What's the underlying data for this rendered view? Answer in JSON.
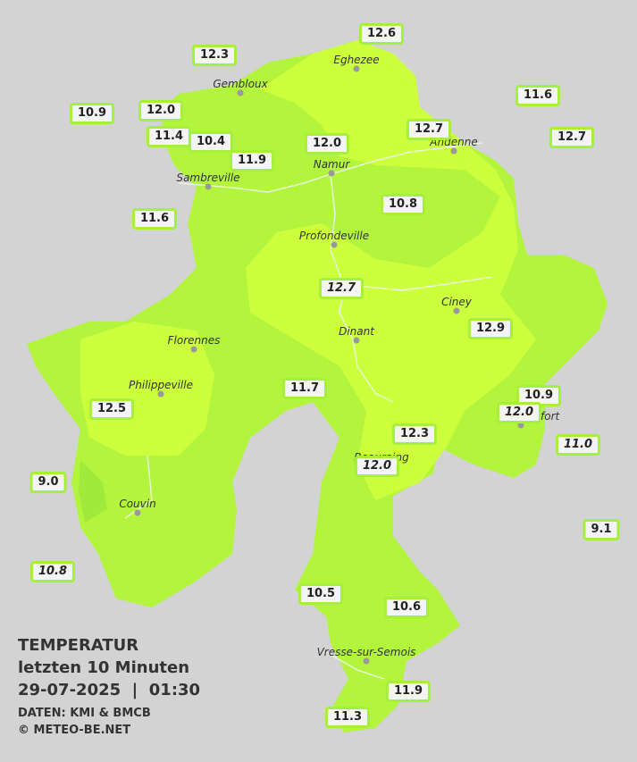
{
  "legend": {
    "title": "TEMPERATUR",
    "subtitle": "letzten 10 Minuten",
    "datetime": "29-07-2025  |  01:30",
    "source": "DATEN: KMI & BMCB",
    "copyright": "© METEO-BE.NET"
  },
  "towns": [
    "Eghezee",
    "Gembloux",
    "Andenne",
    "Namur",
    "Sambreville",
    "Profondeville",
    "Ciney",
    "Dinant",
    "Florennes",
    "Philippeville",
    "Rochefort",
    "Beauraing",
    "Couvin",
    "Vresse-sur-Semois"
  ],
  "stations": [
    "12.6",
    "12.3",
    "11.6",
    "10.9",
    "12.0",
    "12.7",
    "12.7",
    "11.4",
    "10.4",
    "12.0",
    "11.9",
    "10.8",
    "11.6",
    "12.7",
    "12.9",
    "11.7",
    "10.9",
    "12.0",
    "12.5",
    "12.3",
    "11.0",
    "12.0",
    "9.0",
    "9.1",
    "10.8",
    "10.5",
    "10.6",
    "11.9",
    "11.3"
  ]
}
